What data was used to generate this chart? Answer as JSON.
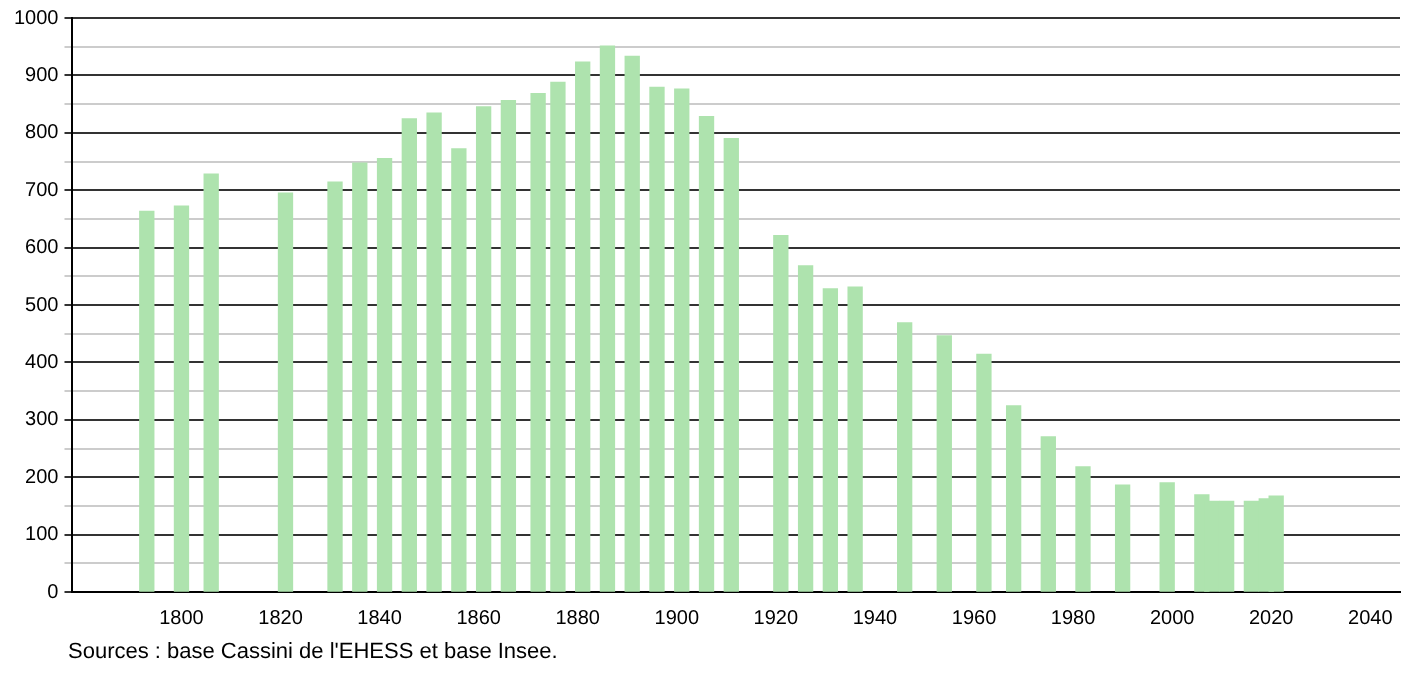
{
  "chart_data": {
    "type": "bar",
    "x": [
      1793,
      1800,
      1806,
      1821,
      1831,
      1836,
      1841,
      1846,
      1851,
      1856,
      1861,
      1866,
      1872,
      1876,
      1881,
      1886,
      1891,
      1896,
      1901,
      1906,
      1911,
      1921,
      1926,
      1931,
      1936,
      1946,
      1954,
      1962,
      1968,
      1975,
      1982,
      1990,
      1999,
      2006,
      2008,
      2011,
      2016,
      2019,
      2021
    ],
    "values": [
      663,
      672,
      728,
      695,
      714,
      747,
      755,
      824,
      834,
      772,
      845,
      856,
      868,
      888,
      923,
      951,
      933,
      879,
      876,
      828,
      790,
      621,
      568,
      528,
      531,
      469,
      446,
      414,
      324,
      270,
      218,
      186,
      190,
      169,
      158,
      158,
      158,
      162,
      167
    ],
    "color": "#aee3ae",
    "xlim": [
      1778,
      2046
    ],
    "xticks": [
      1800,
      1820,
      1840,
      1860,
      1880,
      1900,
      1920,
      1940,
      1960,
      1980,
      2000,
      2020,
      2040
    ],
    "ylim": [
      0,
      1000
    ],
    "yticks": [
      0,
      {
        "value": 50,
        "label": null
      },
      100,
      {
        "value": 150,
        "label": null
      },
      200,
      {
        "value": 250,
        "label": null
      },
      300,
      {
        "value": 350,
        "label": null
      },
      400,
      {
        "value": 450,
        "label": null
      },
      500,
      {
        "value": 550,
        "label": null
      },
      600,
      {
        "value": 650,
        "label": null
      },
      700,
      {
        "value": 750,
        "label": null
      },
      800,
      {
        "value": 850,
        "label": null
      },
      900,
      {
        "value": 950,
        "label": null
      },
      1000
    ],
    "grid": "y",
    "annotations": [
      "Sources : base Cassini de l'EHESS et base Insee."
    ]
  }
}
